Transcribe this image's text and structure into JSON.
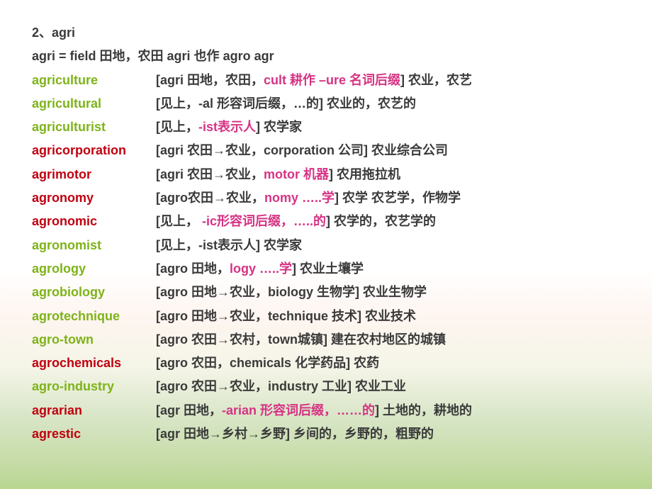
{
  "colors": {
    "green": "#7eb319",
    "red": "#c00010",
    "magenta": "#d63384",
    "black": "#3a3a3a",
    "bg_top": "#ffffff",
    "bg_bottom": "#b8d690"
  },
  "typography": {
    "font_family": "Microsoft YaHei",
    "font_size": 18,
    "font_weight": "bold",
    "line_height": 1.85
  },
  "header1": "2、agri",
  "header2": {
    "p1": "agri = field ",
    "p2": "田地，农田 ",
    "p3": "agri ",
    "p4": "也作 ",
    "p5": "agro agr"
  },
  "rows": [
    {
      "term": "agriculture",
      "term_color": "g",
      "parts": [
        {
          "t": "[agri ",
          "c": "k"
        },
        {
          "t": "田地，农田，",
          "c": "k"
        },
        {
          "t": "cult 耕作 –ure 名词后缀",
          "c": "m"
        },
        {
          "t": "] ",
          "c": "k"
        },
        {
          "t": "农业，农艺",
          "c": "k"
        }
      ]
    },
    {
      "term": "agricultural",
      "term_color": "g",
      "parts": [
        {
          "t": "[",
          "c": "k"
        },
        {
          "t": "见上，",
          "c": "k"
        },
        {
          "t": "-al ",
          "c": "k"
        },
        {
          "t": "形容词后缀，",
          "c": "k"
        },
        {
          "t": "…",
          "c": "k"
        },
        {
          "t": "的",
          "c": "k"
        },
        {
          "t": "] ",
          "c": "k"
        },
        {
          "t": "农业的，农艺的",
          "c": "k"
        }
      ]
    },
    {
      "term": "agriculturist",
      "term_color": "g",
      "parts": [
        {
          "t": "[",
          "c": "k"
        },
        {
          "t": "见上，",
          "c": "k"
        },
        {
          "t": "-ist表示人",
          "c": "m"
        },
        {
          "t": "] ",
          "c": "k"
        },
        {
          "t": "农学家",
          "c": "k"
        }
      ]
    },
    {
      "term": "agricorporation",
      "term_color": "r",
      "parts": [
        {
          "t": "[agri ",
          "c": "k"
        },
        {
          "t": "农田→农业，",
          "c": "k"
        },
        {
          "t": "corporation ",
          "c": "k"
        },
        {
          "t": "公司",
          "c": "k"
        },
        {
          "t": "] ",
          "c": "k"
        },
        {
          "t": "农业综合公司",
          "c": "k"
        }
      ]
    },
    {
      "term": "agrimotor",
      "term_color": "r",
      "parts": [
        {
          "t": "[agri ",
          "c": "k"
        },
        {
          "t": "农田→农业，",
          "c": "k"
        },
        {
          "t": "motor 机器",
          "c": "m"
        },
        {
          "t": "] ",
          "c": "k"
        },
        {
          "t": "农用拖拉机",
          "c": "k"
        }
      ]
    },
    {
      "term": "agronomy",
      "term_color": "r",
      "parts": [
        {
          "t": "[agro",
          "c": "k"
        },
        {
          "t": "农田→农业，",
          "c": "k"
        },
        {
          "t": "nomy …..学",
          "c": "m"
        },
        {
          "t": "] ",
          "c": "k"
        },
        {
          "t": "农学 农艺学，作物学",
          "c": "k"
        }
      ]
    },
    {
      "term": "agronomic",
      "term_color": "r",
      "parts": [
        {
          "t": "[",
          "c": "k"
        },
        {
          "t": "见上， ",
          "c": "k"
        },
        {
          "t": "-ic形容词后缀，…..的",
          "c": "m"
        },
        {
          "t": "] ",
          "c": "k"
        },
        {
          "t": "农学的，农艺学的",
          "c": "k"
        }
      ]
    },
    {
      "term": "agronomist",
      "term_color": "g",
      "parts": [
        {
          "t": "[",
          "c": "k"
        },
        {
          "t": "见上，",
          "c": "k"
        },
        {
          "t": "-ist表示人",
          "c": "k"
        },
        {
          "t": "] ",
          "c": "k"
        },
        {
          "t": "农学家",
          "c": "k"
        }
      ]
    },
    {
      "term": "agrology",
      "term_color": "g",
      "parts": [
        {
          "t": "[agro ",
          "c": "k"
        },
        {
          "t": "田地，",
          "c": "k"
        },
        {
          "t": "logy …..学",
          "c": "m"
        },
        {
          "t": "] ",
          "c": "k"
        },
        {
          "t": "农业土壤学",
          "c": "k"
        }
      ]
    },
    {
      "term": "agrobiology",
      "term_color": "g",
      "parts": [
        {
          "t": "[agro ",
          "c": "k"
        },
        {
          "t": "田地→农业，",
          "c": "k"
        },
        {
          "t": "biology ",
          "c": "k"
        },
        {
          "t": "生物学",
          "c": "k"
        },
        {
          "t": "] ",
          "c": "k"
        },
        {
          "t": "农业生物学",
          "c": "k"
        }
      ]
    },
    {
      "term": "agrotechnique",
      "term_color": "g",
      "parts": [
        {
          "t": "[agro ",
          "c": "k"
        },
        {
          "t": "田地→农业，",
          "c": "k"
        },
        {
          "t": "technique ",
          "c": "k"
        },
        {
          "t": "技术",
          "c": "k"
        },
        {
          "t": "] ",
          "c": "k"
        },
        {
          "t": "农业技术",
          "c": "k"
        }
      ]
    },
    {
      "term": "agro-town",
      "term_color": "g",
      "parts": [
        {
          "t": "[agro ",
          "c": "k"
        },
        {
          "t": "农田→农村，",
          "c": "k"
        },
        {
          "t": "town",
          "c": "k"
        },
        {
          "t": "城镇",
          "c": "k"
        },
        {
          "t": "] ",
          "c": "k"
        },
        {
          "t": "建在农村地区的城镇",
          "c": "k"
        }
      ]
    },
    {
      "term": "agrochemicals",
      "term_color": "r",
      "parts": [
        {
          "t": "[agro ",
          "c": "k"
        },
        {
          "t": "农田，",
          "c": "k"
        },
        {
          "t": "chemicals ",
          "c": "k"
        },
        {
          "t": "化学药品",
          "c": "k"
        },
        {
          "t": "] ",
          "c": "k"
        },
        {
          "t": "农药",
          "c": "k"
        }
      ]
    },
    {
      "term": "agro-industry",
      "term_color": "g",
      "parts": [
        {
          "t": "[agro ",
          "c": "k"
        },
        {
          "t": "农田→农业，",
          "c": "k"
        },
        {
          "t": "industry ",
          "c": "k"
        },
        {
          "t": "工业",
          "c": "k"
        },
        {
          "t": "] ",
          "c": "k"
        },
        {
          "t": "农业工业",
          "c": "k"
        }
      ]
    },
    {
      "term": "agrarian",
      "term_color": "r",
      "parts": [
        {
          "t": "[agr ",
          "c": "k"
        },
        {
          "t": "田地，",
          "c": "k"
        },
        {
          "t": "-arian 形容词后缀，……的",
          "c": "m"
        },
        {
          "t": "] ",
          "c": "k"
        },
        {
          "t": "土地的，耕地的",
          "c": "k"
        }
      ]
    },
    {
      "term": "agrestic",
      "term_color": "r",
      "parts": [
        {
          "t": "[agr ",
          "c": "k"
        },
        {
          "t": "田地→乡村→乡野",
          "c": "k"
        },
        {
          "t": "] ",
          "c": "k"
        },
        {
          "t": "乡间的，乡野的，粗野的",
          "c": "k"
        }
      ]
    }
  ]
}
